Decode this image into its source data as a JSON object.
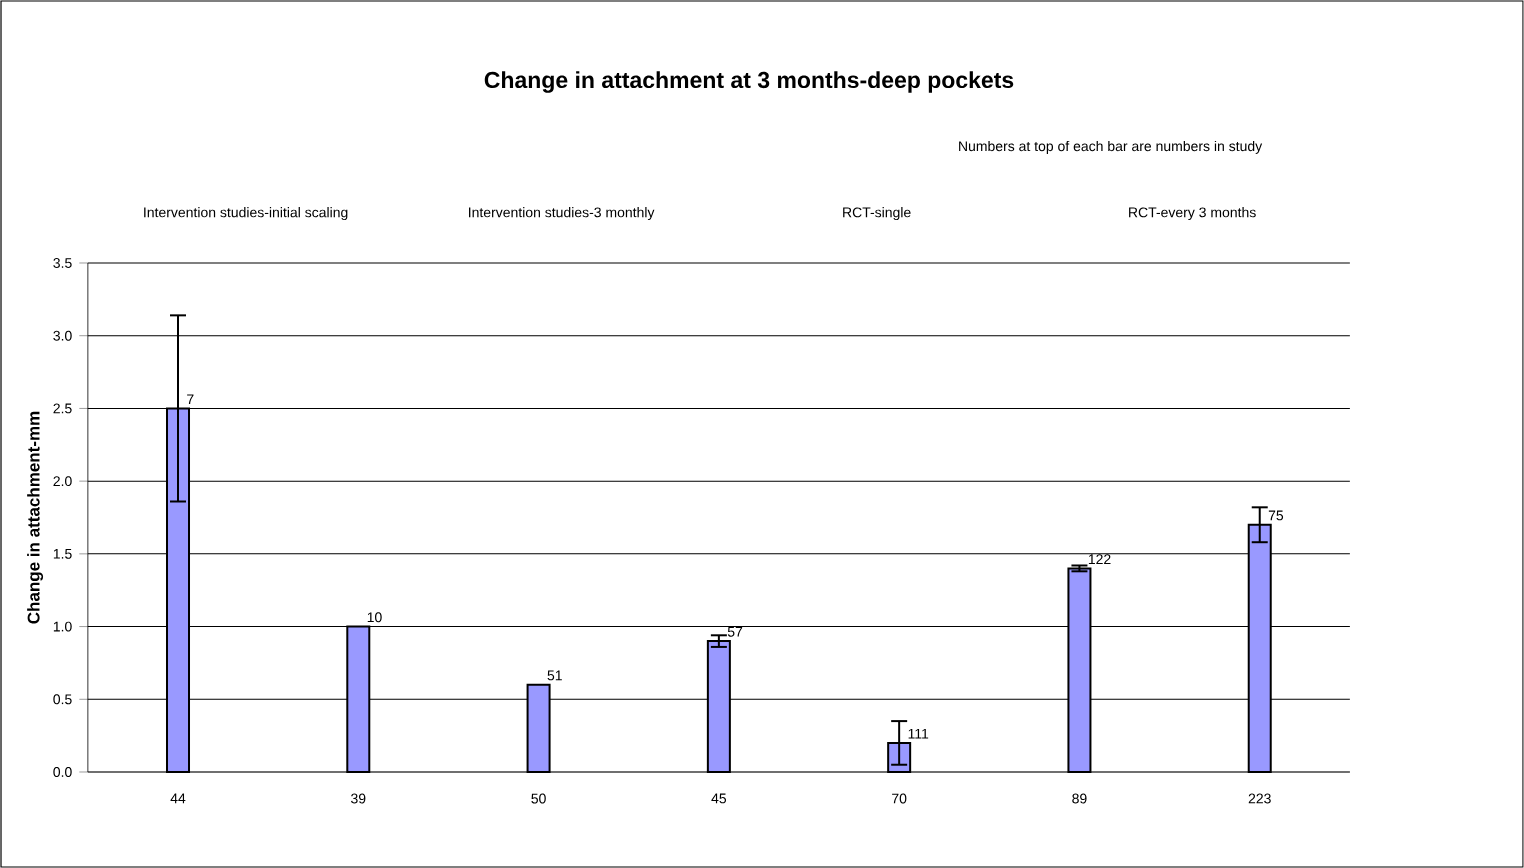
{
  "chart_data": {
    "type": "bar",
    "title": "Change in attachment at 3 months-deep pockets",
    "ylabel": "Change in attachment-mm",
    "categories": [
      "44",
      "39",
      "50",
      "45",
      "70",
      "89",
      "223"
    ],
    "values": [
      2.5,
      1.0,
      0.6,
      0.9,
      0.2,
      1.4,
      1.7
    ],
    "errors": [
      0.64,
      null,
      null,
      0.04,
      0.15,
      0.02,
      0.12
    ],
    "color": "#9999ff",
    "ylim": [
      0,
      3.5
    ],
    "yticks": [
      {
        "value": 0,
        "label": "0.0"
      },
      {
        "value": 0.5,
        "label": "0.5"
      },
      {
        "value": 1,
        "label": "1.0"
      },
      {
        "value": 1.5,
        "label": "1.5"
      },
      {
        "value": 2,
        "label": "2.0"
      },
      {
        "value": 2.5,
        "label": "2.5"
      },
      {
        "value": 3,
        "label": "3.0"
      },
      {
        "value": 3.5,
        "label": "3.5"
      }
    ],
    "grid": "y",
    "annotations": [
      "Numbers at top of each bar are numbers in  study",
      "Intervention studies-initial scaling",
      "Intervention studies-3 monthly",
      "RCT-single",
      "RCT-every 3 months",
      {
        "text": "7",
        "x": "44",
        "y": 2.5
      },
      {
        "text": "10",
        "x": "39",
        "y": 1.0
      },
      {
        "text": "51",
        "x": "50",
        "y": 0.6
      },
      {
        "text": "57",
        "x": "45",
        "y": 0.9
      },
      {
        "text": "111",
        "x": "70",
        "y": 0.2
      },
      {
        "text": "122",
        "x": "89",
        "y": 1.4
      },
      {
        "text": "75",
        "x": "223",
        "y": 1.7
      }
    ]
  }
}
